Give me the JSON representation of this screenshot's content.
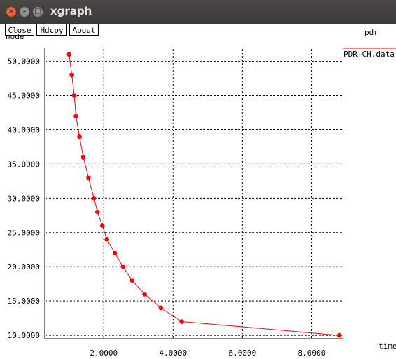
{
  "window": {
    "title": "xgraph"
  },
  "toolbar": {
    "close_label": "Close",
    "hdcpy_label": "Hdcpy",
    "about_label": "About"
  },
  "chart_data": {
    "type": "line",
    "title": "pdr",
    "xlabel": "time",
    "ylabel": "node",
    "xlim": [
      0.3,
      8.9
    ],
    "ylim": [
      9.5,
      52.0
    ],
    "x_ticks": [
      "2.0000",
      "4.0000",
      "6.0000",
      "8.0000"
    ],
    "y_ticks": [
      "10.0000",
      "15.0000",
      "20.0000",
      "25.0000",
      "30.0000",
      "35.0000",
      "40.0000",
      "45.0000",
      "50.0000"
    ],
    "grid": true,
    "legend_position": "top-right",
    "series": [
      {
        "name": "PDR-CH.data",
        "color": "#ff0000",
        "x": [
          1.0,
          1.08,
          1.15,
          1.2,
          1.3,
          1.41,
          1.56,
          1.72,
          1.82,
          1.96,
          2.09,
          2.32,
          2.56,
          2.82,
          3.18,
          3.65,
          4.25,
          8.8
        ],
        "y": [
          51,
          48,
          45,
          42,
          39,
          36,
          33,
          30,
          28,
          26,
          24,
          22,
          20,
          18,
          16,
          14,
          12,
          10
        ]
      }
    ]
  }
}
